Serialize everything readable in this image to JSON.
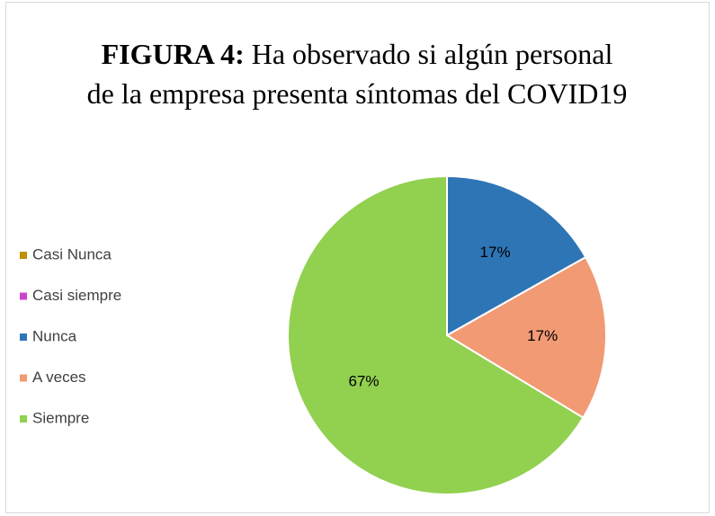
{
  "chart_data": {
    "type": "pie",
    "title_label": "FIGURA 4:",
    "title": "Ha observado si algún personal de la empresa presenta síntomas del COVID19",
    "categories": [
      "Casi Nunca",
      "Casi siempre",
      "Nunca",
      "A veces",
      "Siempre"
    ],
    "values": [
      0,
      0,
      17,
      17,
      67
    ],
    "value_labels": [
      null,
      null,
      "17%",
      "17%",
      "67%"
    ],
    "colors": [
      "#bf9000",
      "#cc44cc",
      "#2e75b6",
      "#f19a73",
      "#92d050"
    ],
    "legend": "left"
  }
}
